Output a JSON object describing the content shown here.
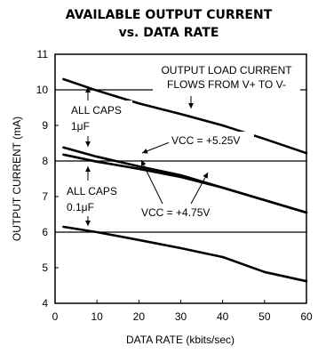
{
  "chart_data": {
    "type": "line",
    "title_line1": "AVAILABLE OUTPUT CURRENT",
    "title_line2": "vs. DATA RATE",
    "xlabel": "DATA RATE (kbits/sec)",
    "ylabel": "OUTPUT CURRENT (mA)",
    "xlim": [
      0,
      60
    ],
    "ylim": [
      4,
      11
    ],
    "xticks": [
      "0",
      "10",
      "20",
      "30",
      "40",
      "50",
      "60"
    ],
    "yticks": [
      "4",
      "5",
      "6",
      "7",
      "8",
      "9",
      "10",
      "11"
    ],
    "grid_y": [
      6,
      8,
      10
    ],
    "grid": true,
    "series": [
      {
        "x": [
          2,
          10,
          20,
          30,
          40,
          50,
          60
        ],
        "y": [
          10.3,
          9.98,
          9.62,
          9.32,
          9.0,
          8.62,
          8.22
        ]
      },
      {
        "x": [
          2,
          10,
          20,
          30,
          40,
          50,
          60
        ],
        "y": [
          8.38,
          8.12,
          7.85,
          7.6,
          7.25,
          6.9,
          6.55
        ]
      },
      {
        "x": [
          2,
          10,
          20,
          30,
          40,
          50,
          60
        ],
        "y": [
          8.18,
          7.98,
          7.78,
          7.55,
          7.25,
          6.9,
          6.55
        ]
      },
      {
        "x": [
          2,
          10,
          20,
          30,
          40,
          50,
          60
        ],
        "y": [
          6.15,
          6.0,
          5.78,
          5.55,
          5.3,
          4.88,
          4.62
        ]
      }
    ],
    "annotations": [
      {
        "lines": [
          "OUTPUT LOAD CURRENT",
          "FLOWS FROM V+ TO V-"
        ]
      },
      {
        "lines": [
          "ALL CAPS",
          "1μF"
        ]
      },
      {
        "lines": [
          "ALL CAPS",
          "0.1μF"
        ]
      },
      {
        "lines": [
          "VCC = +5.25V"
        ]
      },
      {
        "lines": [
          "VCC = +4.75V"
        ]
      }
    ]
  }
}
